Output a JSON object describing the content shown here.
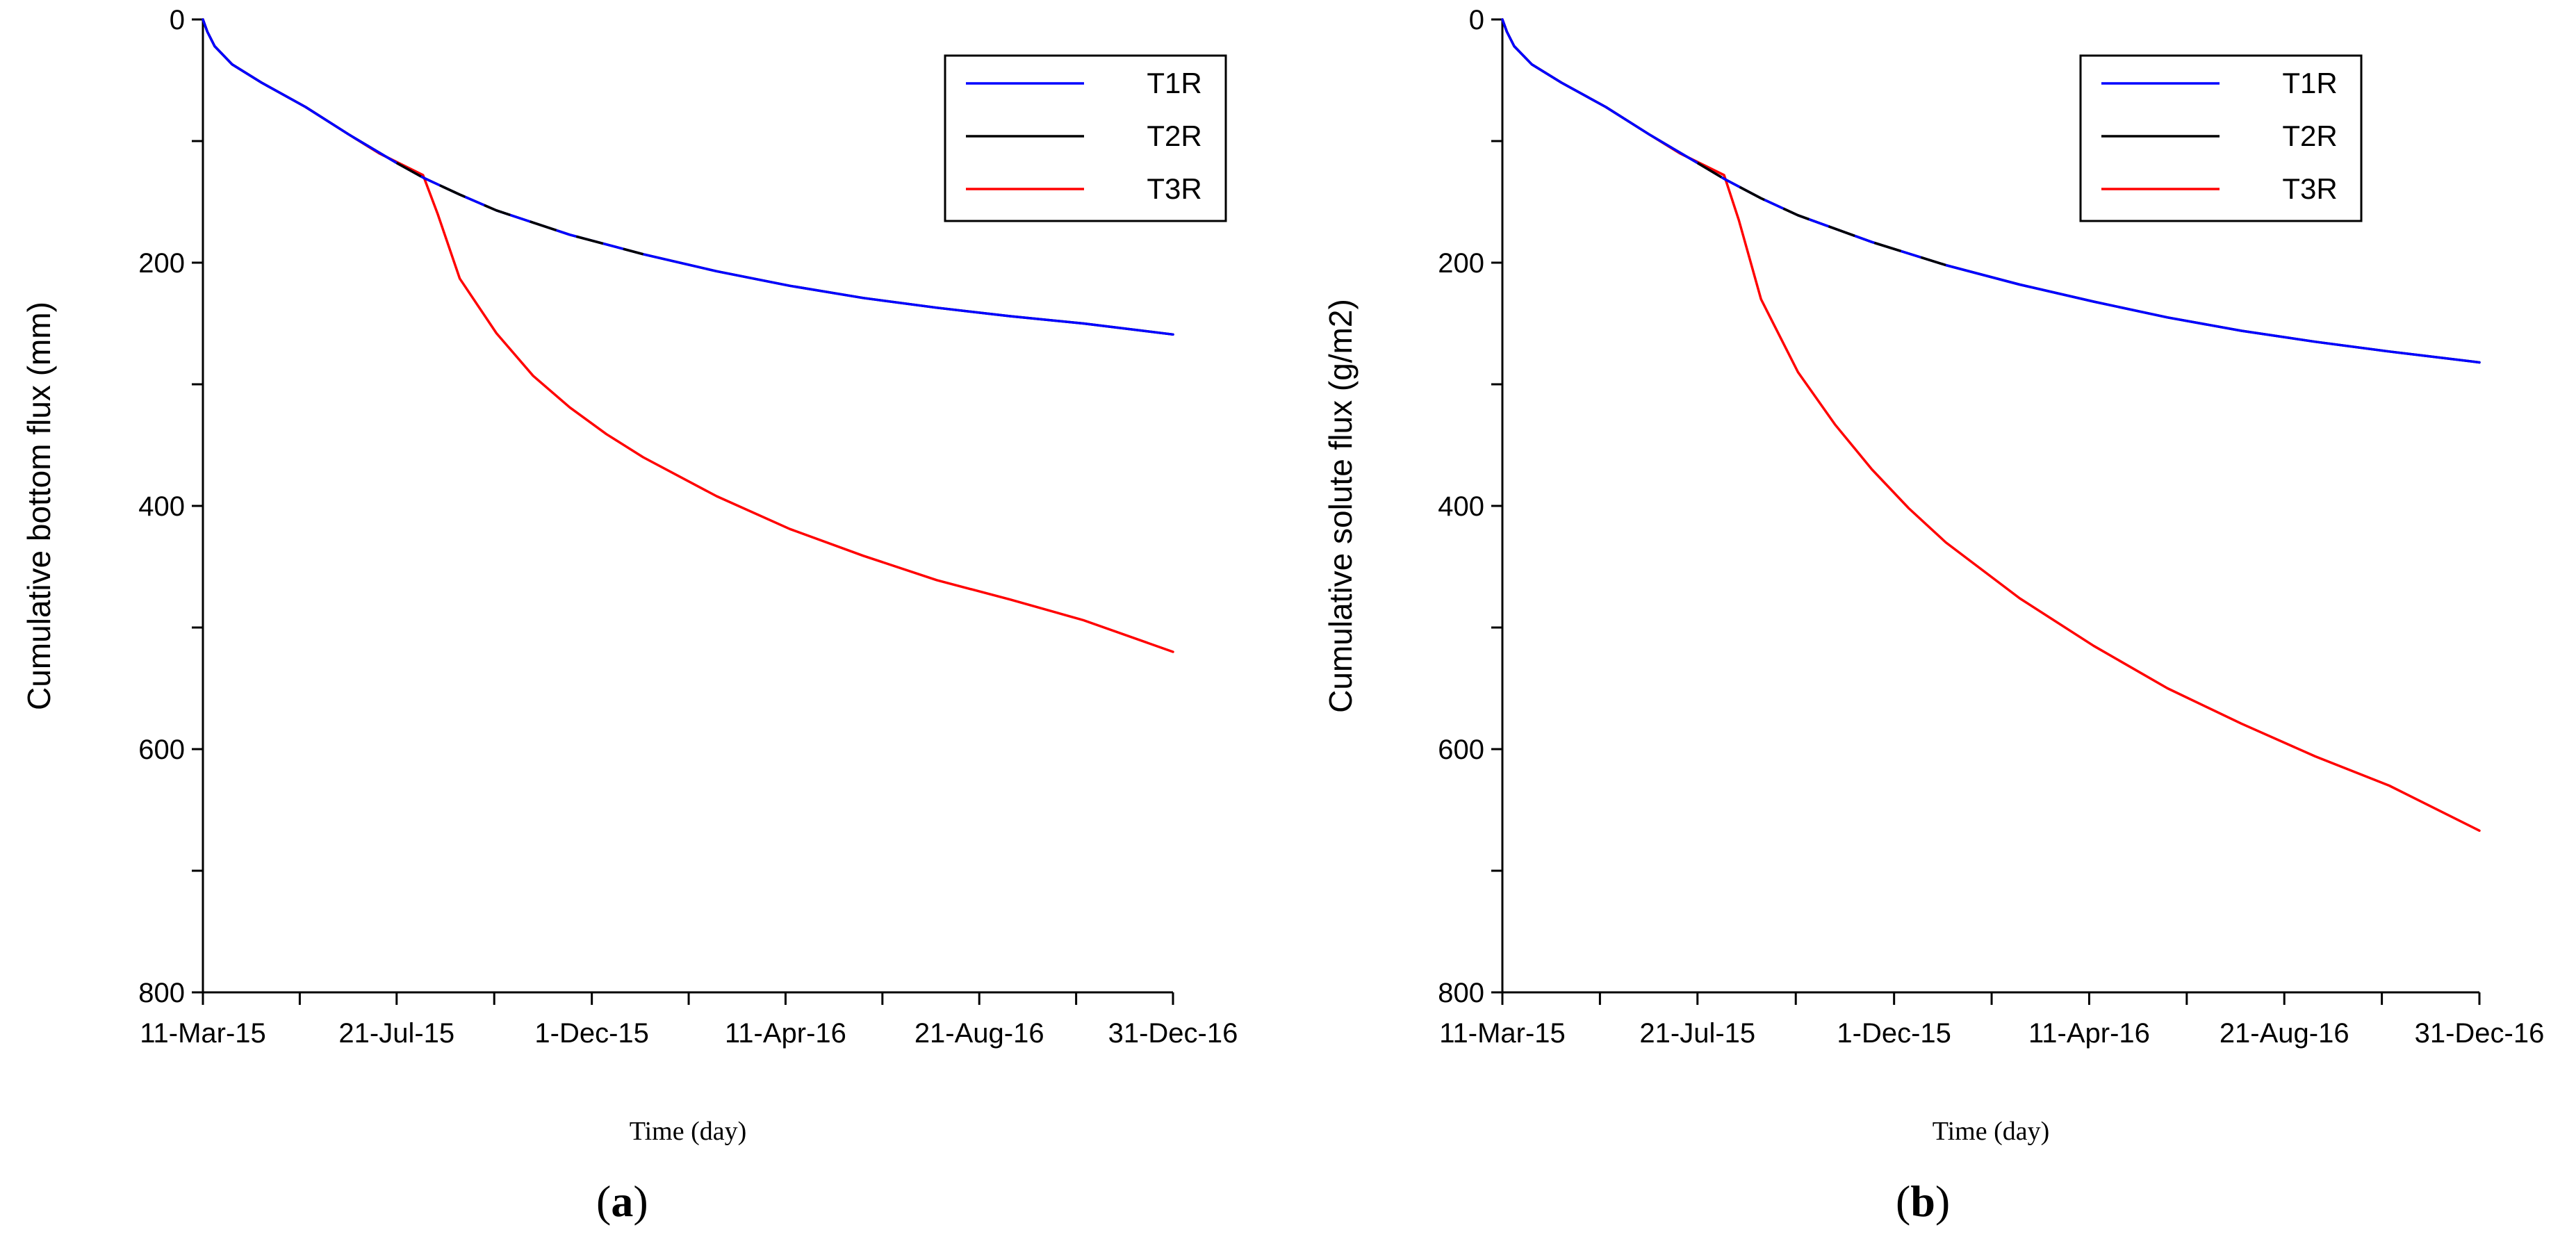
{
  "chart_data": [
    {
      "type": "line",
      "panel_label": "a",
      "title": "",
      "xlabel": "Time (day)",
      "ylabel": "Cumulative bottom flux (mm)",
      "x_unit": "days since 11-Mar-15",
      "xlim": [
        0,
        661
      ],
      "ylim": [
        0,
        800
      ],
      "y_inverted": true,
      "x_ticks": [
        {
          "value": 0,
          "label": "11-Mar-15"
        },
        {
          "value": 132,
          "label": "21-Jul-15"
        },
        {
          "value": 265,
          "label": "1-Dec-15"
        },
        {
          "value": 397,
          "label": "11-Apr-16"
        },
        {
          "value": 529,
          "label": "21-Aug-16"
        },
        {
          "value": 661,
          "label": "31-Dec-16"
        }
      ],
      "y_ticks": [
        0,
        200,
        400,
        600,
        800
      ],
      "legend_position": "top-right",
      "series": [
        {
          "name": "T1R",
          "color": "#0000ff",
          "x": [
            0,
            3,
            8,
            20,
            40,
            70,
            100,
            132,
            150,
            175,
            200,
            250,
            300,
            350,
            400,
            450,
            500,
            550,
            600,
            661
          ],
          "y": [
            0,
            10,
            22,
            37,
            52,
            72,
            95,
            118,
            130,
            144,
            157,
            177,
            193,
            207,
            219,
            229,
            237,
            244,
            250,
            259
          ]
        },
        {
          "name": "T2R",
          "color": "#000000",
          "x": [
            0,
            3,
            8,
            20,
            40,
            70,
            100,
            132,
            150,
            175,
            200,
            250,
            300,
            350,
            400,
            450,
            500,
            550,
            600,
            661
          ],
          "y": [
            0,
            10,
            22,
            37,
            52,
            72,
            95,
            118,
            130,
            144,
            157,
            177,
            193,
            207,
            219,
            229,
            237,
            244,
            250,
            259
          ]
        },
        {
          "name": "T3R",
          "color": "#ff0000",
          "x": [
            0,
            3,
            8,
            20,
            40,
            70,
            100,
            120,
            150,
            160,
            175,
            200,
            225,
            250,
            275,
            300,
            350,
            400,
            450,
            500,
            550,
            600,
            661
          ],
          "y": [
            0,
            10,
            22,
            37,
            52,
            72,
            95,
            110,
            128,
            160,
            213,
            258,
            293,
            319,
            341,
            360,
            392,
            419,
            441,
            461,
            477,
            494,
            520
          ]
        }
      ]
    },
    {
      "type": "line",
      "panel_label": "b",
      "title": "",
      "xlabel": "Time (day)",
      "ylabel": "Cumulative solute flux (g/m2)",
      "x_unit": "days since 11-Mar-15",
      "xlim": [
        0,
        661
      ],
      "ylim": [
        0,
        800
      ],
      "y_inverted": true,
      "x_ticks": [
        {
          "value": 0,
          "label": "11-Mar-15"
        },
        {
          "value": 132,
          "label": "21-Jul-15"
        },
        {
          "value": 265,
          "label": "1-Dec-15"
        },
        {
          "value": 397,
          "label": "11-Apr-16"
        },
        {
          "value": 529,
          "label": "21-Aug-16"
        },
        {
          "value": 661,
          "label": "31-Dec-16"
        }
      ],
      "y_ticks": [
        0,
        200,
        400,
        600,
        800
      ],
      "legend_position": "top-right",
      "series": [
        {
          "name": "T1R",
          "color": "#0000ff",
          "x": [
            0,
            3,
            8,
            20,
            40,
            70,
            100,
            132,
            150,
            175,
            200,
            250,
            300,
            350,
            400,
            450,
            500,
            550,
            600,
            661
          ],
          "y": [
            0,
            10,
            22,
            37,
            52,
            72,
            95,
            118,
            131,
            147,
            161,
            183,
            202,
            218,
            232,
            245,
            256,
            265,
            273,
            282
          ]
        },
        {
          "name": "T2R",
          "color": "#000000",
          "x": [
            0,
            3,
            8,
            20,
            40,
            70,
            100,
            132,
            150,
            175,
            200,
            250,
            300,
            350,
            400,
            450,
            500,
            550,
            600,
            661
          ],
          "y": [
            0,
            10,
            22,
            37,
            52,
            72,
            95,
            118,
            131,
            147,
            161,
            183,
            202,
            218,
            232,
            245,
            256,
            265,
            273,
            282
          ]
        },
        {
          "name": "T3R",
          "color": "#ff0000",
          "x": [
            0,
            3,
            8,
            20,
            40,
            70,
            100,
            120,
            150,
            160,
            175,
            200,
            225,
            250,
            275,
            300,
            350,
            400,
            450,
            500,
            550,
            600,
            661
          ],
          "y": [
            0,
            10,
            22,
            37,
            52,
            72,
            95,
            110,
            128,
            165,
            230,
            290,
            333,
            370,
            402,
            430,
            476,
            515,
            550,
            579,
            606,
            630,
            667
          ]
        }
      ]
    }
  ]
}
